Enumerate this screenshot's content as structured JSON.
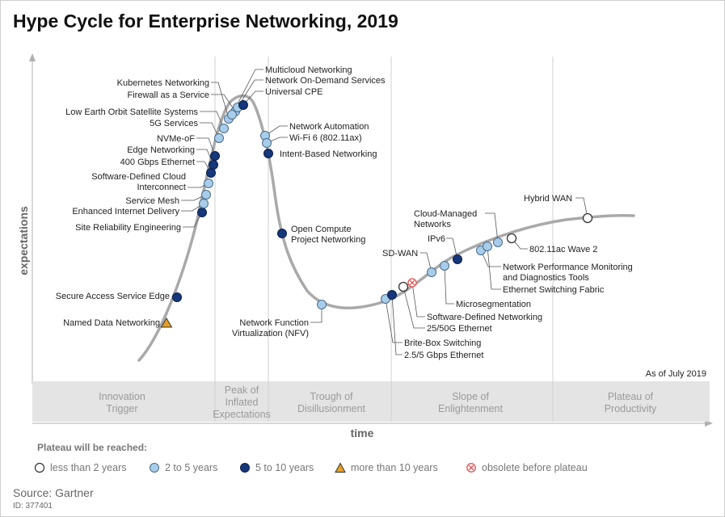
{
  "title": "Hype Cycle for Enterprise Networking, 2019",
  "chart_data": {
    "type": "hype-cycle",
    "title": "Hype Cycle for Enterprise Networking, 2019",
    "xlabel": "time",
    "ylabel": "expectations",
    "as_of": "As of July 2019",
    "phases": [
      "Innovation Trigger",
      "Peak of Inflated Expectations",
      "Trough of Disillusionment",
      "Slope of Enlightenment",
      "Plateau of Productivity"
    ],
    "phase_display": [
      [
        "Innovation",
        "Trigger"
      ],
      [
        "Peak of",
        "Inflated",
        "Expectations"
      ],
      [
        "Trough of",
        "Disillusionment"
      ],
      [
        "Slope of",
        "Enlightenment"
      ],
      [
        "Plateau of",
        "Productivity"
      ]
    ],
    "plateau_categories": {
      "lt2": {
        "label": "less than 2 years",
        "color": "#ffffff"
      },
      "2to5": {
        "label": "2 to 5 years",
        "color": "#a8cdea"
      },
      "5to10": {
        "label": "5 to 10 years",
        "color": "#16377a"
      },
      "gt10": {
        "label": "more than 10 years",
        "color": "#e8a020"
      },
      "obsolete": {
        "label": "obsolete before plateau",
        "color": "#e05050"
      }
    },
    "technologies": [
      {
        "name": "Named Data Networking",
        "phase": "Innovation Trigger",
        "plateau": "gt10"
      },
      {
        "name": "Secure Access Service Edge",
        "phase": "Innovation Trigger",
        "plateau": "5to10"
      },
      {
        "name": "Site Reliability Engineering",
        "phase": "Innovation Trigger",
        "plateau": "5to10"
      },
      {
        "name": "Enhanced Internet Delivery",
        "phase": "Innovation Trigger",
        "plateau": "2to5"
      },
      {
        "name": "Service Mesh",
        "phase": "Innovation Trigger",
        "plateau": "2to5"
      },
      {
        "name": "Software-Defined Cloud Interconnect",
        "phase": "Innovation Trigger",
        "plateau": "2to5"
      },
      {
        "name": "400 Gbps Ethernet",
        "phase": "Innovation Trigger",
        "plateau": "5to10"
      },
      {
        "name": "Edge Networking",
        "phase": "Innovation Trigger",
        "plateau": "5to10"
      },
      {
        "name": "NVMe-oF",
        "phase": "Innovation Trigger",
        "plateau": "5to10"
      },
      {
        "name": "5G Services",
        "phase": "Innovation Trigger",
        "plateau": "2to5"
      },
      {
        "name": "Low Earth Orbit Satellite Systems",
        "phase": "Peak of Inflated Expectations",
        "plateau": "2to5"
      },
      {
        "name": "Kubernetes Networking",
        "phase": "Peak of Inflated Expectations",
        "plateau": "2to5"
      },
      {
        "name": "Firewall as a Service",
        "phase": "Peak of Inflated Expectations",
        "plateau": "2to5"
      },
      {
        "name": "Multicloud Networking",
        "phase": "Peak of Inflated Expectations",
        "plateau": "2to5"
      },
      {
        "name": "Network On-Demand Services",
        "phase": "Peak of Inflated Expectations",
        "plateau": "2to5"
      },
      {
        "name": "Universal CPE",
        "phase": "Peak of Inflated Expectations",
        "plateau": "5to10"
      },
      {
        "name": "Network Automation",
        "phase": "Trough of Disillusionment",
        "plateau": "2to5"
      },
      {
        "name": "Wi-Fi 6 (802.11ax)",
        "phase": "Trough of Disillusionment",
        "plateau": "2to5"
      },
      {
        "name": "Intent-Based Networking",
        "phase": "Trough of Disillusionment",
        "plateau": "5to10"
      },
      {
        "name": "Open Compute Project Networking",
        "phase": "Trough of Disillusionment",
        "plateau": "5to10"
      },
      {
        "name": "Network Function Virtualization (NFV)",
        "phase": "Trough of Disillusionment",
        "plateau": "2to5"
      },
      {
        "name": "Brite-Box Switching",
        "phase": "Trough of Disillusionment",
        "plateau": "2to5"
      },
      {
        "name": "2.5/5 Gbps Ethernet",
        "phase": "Trough of Disillusionment",
        "plateau": "5to10"
      },
      {
        "name": "25/50G Ethernet",
        "phase": "Slope of Enlightenment",
        "plateau": "lt2"
      },
      {
        "name": "Software-Defined Networking",
        "phase": "Slope of Enlightenment",
        "plateau": "obsolete"
      },
      {
        "name": "SD-WAN",
        "phase": "Slope of Enlightenment",
        "plateau": "2to5"
      },
      {
        "name": "Microsegmentation",
        "phase": "Slope of Enlightenment",
        "plateau": "2to5"
      },
      {
        "name": "IPv6",
        "phase": "Slope of Enlightenment",
        "plateau": "5to10"
      },
      {
        "name": "Network Performance Monitoring and Diagnostics Tools",
        "phase": "Slope of Enlightenment",
        "plateau": "2to5"
      },
      {
        "name": "Ethernet Switching Fabric",
        "phase": "Slope of Enlightenment",
        "plateau": "2to5"
      },
      {
        "name": "Cloud-Managed Networks",
        "phase": "Slope of Enlightenment",
        "plateau": "2to5"
      },
      {
        "name": "802.11ac Wave 2",
        "phase": "Slope of Enlightenment",
        "plateau": "lt2"
      },
      {
        "name": "Hybrid WAN",
        "phase": "Plateau of Productivity",
        "plateau": "lt2"
      }
    ],
    "label_lines": {
      "Software-Defined Cloud Interconnect": [
        "Software-Defined Cloud",
        "Interconnect"
      ],
      "Open Compute Project Networking": [
        "Open Compute",
        "Project Networking"
      ],
      "Network Function Virtualization (NFV)": [
        "Network Function",
        "Virtualization (NFV)"
      ],
      "Cloud-Managed Networks": [
        "Cloud-Managed",
        "Networks"
      ],
      "Network Performance Monitoring and Diagnostics Tools": [
        "Network Performance Monitoring",
        "and Diagnostics Tools"
      ]
    }
  },
  "legend": {
    "title": "Plateau will be reached:",
    "items": [
      {
        "key": "lt2",
        "label": "less than 2 years"
      },
      {
        "key": "2to5",
        "label": "2 to 5 years"
      },
      {
        "key": "5to10",
        "label": "5 to 10 years"
      },
      {
        "key": "gt10",
        "label": "more than 10 years"
      },
      {
        "key": "obsolete",
        "label": "obsolete before plateau"
      }
    ]
  },
  "source": "Source: Gartner",
  "doc_id": "ID: 377401"
}
